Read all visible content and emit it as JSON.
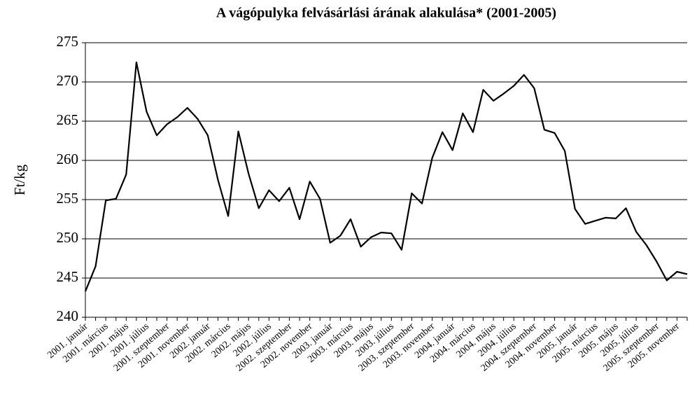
{
  "chart_data": {
    "type": "line",
    "title": "A vágópulyka felvásárlási árának alakulása* (2001-2005)",
    "y_label": "Ft/kg",
    "categories": [
      "2001. január",
      null,
      "2001. március",
      null,
      "2001. május",
      null,
      "2001. július",
      null,
      "2001. szeptember",
      null,
      "2001. november",
      null,
      "2002. január",
      null,
      "2002. március",
      null,
      "2002. május",
      null,
      "2002. július",
      null,
      "2002. szeptember",
      null,
      "2002. november",
      null,
      "2003. január",
      null,
      "2003. március",
      null,
      "2003. május",
      null,
      "2003. július",
      null,
      "2003. szeptember",
      null,
      "2003. november",
      null,
      "2004. január",
      null,
      "2004. március",
      null,
      "2004. május",
      null,
      "2004. július",
      null,
      "2004. szeptember",
      null,
      "2004. november",
      null,
      "2005. január",
      null,
      "2005. március",
      null,
      "2005. május",
      null,
      "2005. július",
      null,
      "2005. szeptember",
      null,
      "2005. november",
      null
    ],
    "values": [
      243.3,
      246.5,
      254.9,
      255.1,
      258.2,
      272.5,
      266.2,
      263.2,
      264.6,
      265.5,
      266.7,
      265.3,
      263.2,
      257.5,
      252.9,
      263.7,
      258.3,
      253.9,
      256.2,
      254.8,
      256.5,
      252.5,
      257.3,
      255.1,
      249.5,
      250.4,
      252.5,
      249.0,
      250.2,
      250.8,
      250.7,
      248.6,
      255.8,
      254.5,
      260.3,
      263.6,
      261.3,
      266.0,
      263.6,
      269.0,
      267.6,
      268.5,
      269.5,
      270.9,
      269.2,
      263.9,
      263.5,
      261.2,
      253.8,
      251.9,
      252.3,
      252.7,
      252.6,
      253.9,
      250.9,
      249.2,
      247.1,
      244.7,
      245.8,
      245.5
    ],
    "color": "#000000",
    "ylim": [
      240,
      275
    ],
    "yticks": [
      240,
      245,
      250,
      255,
      260,
      265,
      270,
      275
    ],
    "grid": true
  }
}
